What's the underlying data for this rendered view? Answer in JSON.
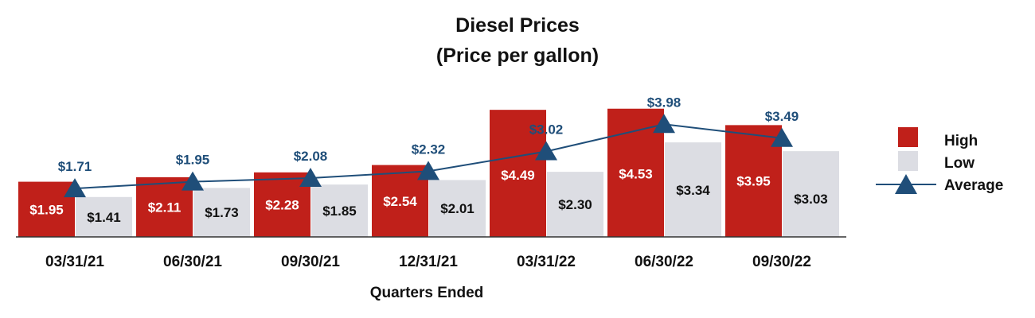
{
  "chart_data": {
    "type": "bar",
    "title": "Diesel Prices",
    "subtitle": "(Price per gallon)",
    "xlabel": "Quarters Ended",
    "ylabel": "",
    "ylim": [
      0,
      4.6
    ],
    "grid": false,
    "legend_position": "right",
    "categories": [
      "03/31/21",
      "06/30/21",
      "09/30/21",
      "12/31/21",
      "03/31/22",
      "06/30/22",
      "09/30/22"
    ],
    "series": [
      {
        "name": "High",
        "kind": "bar",
        "color": "#c0201a",
        "values": [
          1.95,
          2.11,
          2.28,
          2.54,
          4.49,
          4.53,
          3.95
        ],
        "labels": [
          "$1.95",
          "$2.11",
          "$2.28",
          "$2.54",
          "$4.49",
          "$4.53",
          "$3.95"
        ]
      },
      {
        "name": "Low",
        "kind": "bar",
        "color": "#dcdde3",
        "values": [
          1.41,
          1.73,
          1.85,
          2.01,
          2.3,
          3.34,
          3.03
        ],
        "labels": [
          "$1.41",
          "$1.73",
          "$1.85",
          "$2.01",
          "$2.30",
          "$3.34",
          "$3.03"
        ]
      },
      {
        "name": "Average",
        "kind": "line",
        "color": "#1f4e79",
        "marker": "triangle",
        "values": [
          1.71,
          1.95,
          2.08,
          2.32,
          3.02,
          3.98,
          3.49
        ],
        "labels": [
          "$1.71",
          "$1.95",
          "$2.08",
          "$2.32",
          "$3.02",
          "$3.98",
          "$3.49"
        ]
      }
    ]
  }
}
